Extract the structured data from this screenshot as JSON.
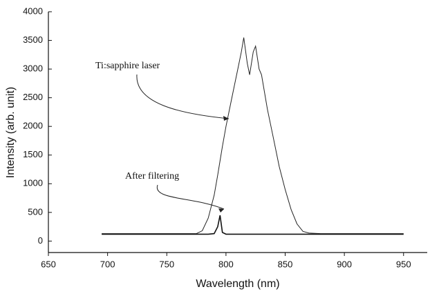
{
  "chart_data": {
    "type": "line",
    "x_label": "Wavelength (nm)",
    "y_label": "Intensity (arb. unit)",
    "x": [
      695,
      700,
      720,
      740,
      760,
      775,
      780,
      785,
      790,
      793,
      795,
      797,
      800,
      805,
      810,
      813,
      815,
      818,
      820,
      823,
      825,
      828,
      830,
      835,
      840,
      845,
      850,
      855,
      860,
      865,
      870,
      880,
      900,
      920,
      950
    ],
    "series": [
      {
        "name": "Ti:sapphire laser",
        "color": "#222222",
        "values": [
          130,
          130,
          130,
          130,
          130,
          130,
          180,
          400,
          800,
          1150,
          1400,
          1650,
          2000,
          2500,
          3000,
          3300,
          3550,
          3100,
          2900,
          3300,
          3400,
          3000,
          2900,
          2300,
          1800,
          1300,
          900,
          550,
          300,
          170,
          140,
          130,
          130,
          130,
          130
        ]
      },
      {
        "name": "After filtering",
        "color": "#111111",
        "values": [
          120,
          120,
          120,
          120,
          120,
          120,
          120,
          120,
          130,
          250,
          450,
          150,
          120,
          120,
          120,
          120,
          120,
          120,
          120,
          120,
          120,
          120,
          120,
          120,
          120,
          120,
          120,
          120,
          120,
          120,
          120,
          120,
          120,
          120,
          120
        ]
      }
    ],
    "xlim": [
      650,
      970
    ],
    "ylim": [
      -200,
      4000
    ],
    "xticks": [
      650,
      700,
      750,
      800,
      850,
      900,
      950
    ],
    "yticks": [
      0,
      500,
      1000,
      1500,
      2000,
      2500,
      3000,
      3500,
      4000
    ],
    "grid": false
  }
}
